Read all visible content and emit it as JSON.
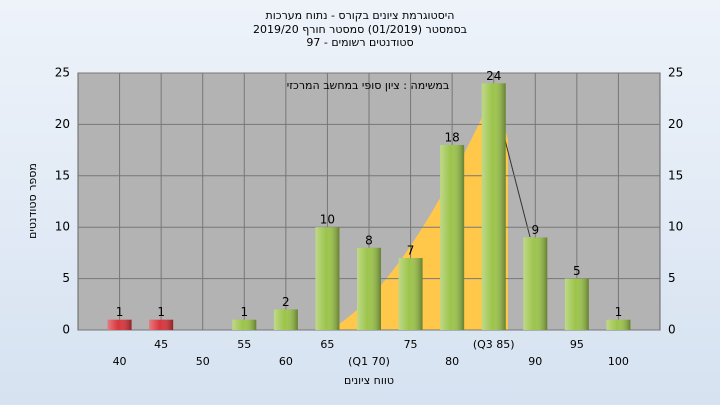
{
  "chart_data": {
    "type": "bar",
    "title": "היסטוגרמת ציונים בקורס - נתוח מערכות",
    "subtitle": [
      "בסמסטר  (01/2019)  סמסטר חורף 2019/20",
      "סטודנטים רשומים - 97"
    ],
    "annotation": "במשימה : ציון סופי במחשב המרכזי",
    "x_label": "טווח ציונים",
    "y_label": "מספר סטודנטים",
    "categories": [
      "40",
      "45",
      "50",
      "55",
      "60",
      "65",
      "(Q1 70)",
      "75",
      "80",
      "(Q3 85)",
      "90",
      "95",
      "100"
    ],
    "values": [
      1,
      1,
      null,
      1,
      2,
      10,
      8,
      7,
      18,
      24,
      9,
      5,
      1
    ],
    "colors": [
      "#d8343c",
      "#d8343c",
      "#9cc44a",
      "#9cc44a",
      "#9cc44a",
      "#9cc44a",
      "#9cc44a",
      "#9cc44a",
      "#9cc44a",
      "#9cc44a",
      "#9cc44a",
      "#9cc44a",
      "#9cc44a"
    ],
    "ylim": [
      0,
      25
    ],
    "yticks": [
      0,
      5,
      10,
      15,
      20,
      25
    ],
    "y2lim": [
      0,
      25
    ],
    "y2ticks": [
      0,
      5,
      10,
      15,
      20,
      25
    ],
    "grid": true
  }
}
